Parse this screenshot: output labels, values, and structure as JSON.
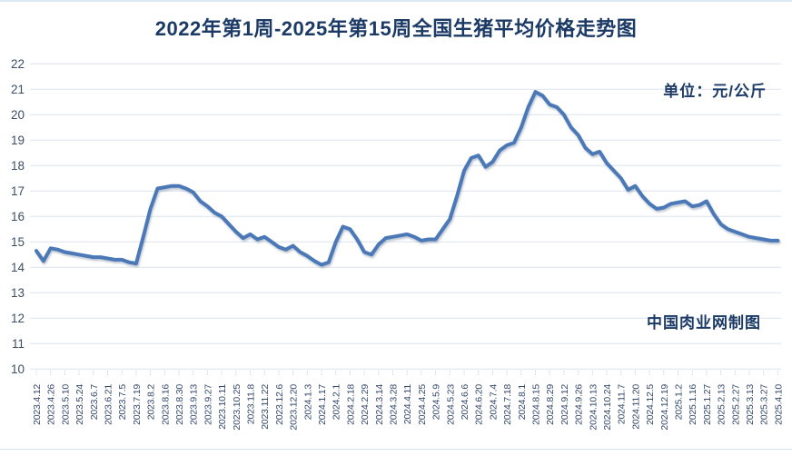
{
  "page": {
    "title": "2022年第1周-2025年第15周全国生猪平均价格走势图",
    "unit_label": "单位：元/公斤",
    "watermark": "中国肉业网制图"
  },
  "colors": {
    "title_text": "#1b3a66",
    "annotation_text": "#1b3a66",
    "axis_text": "#3e4e66",
    "grid_line": "#dbe4f0",
    "series_line": "#4b79b7",
    "background": "#ffffff"
  },
  "chart_data": {
    "type": "line",
    "title": "2022年第1周-2025年第15周全国生猪平均价格走势图",
    "xlabel": "",
    "ylabel": "元/公斤",
    "ylim": [
      10,
      22
    ],
    "y_ticks": [
      22,
      21,
      20,
      19,
      18,
      17,
      16,
      15,
      14,
      13,
      12,
      11,
      10
    ],
    "grid": "horizontal",
    "legend": "none",
    "x_tick_labels": [
      "2023.4.12",
      "2023.4.26",
      "2023.5.10",
      "2023.5.24",
      "2023.6.7",
      "2023.6.21",
      "2023.7.5",
      "2023.7.19",
      "2023.8.2",
      "2023.8.16",
      "2023.8.30",
      "2023.9.13",
      "2023.9.27",
      "2023.10.11",
      "2023.10.25",
      "2023.11.8",
      "2023.11.22",
      "2023.12.6",
      "2023.12.20",
      "2024.1.3",
      "2024.1.17",
      "2024.2.1",
      "2024.2.18",
      "2024.2.29",
      "2024.3.14",
      "2024.3.28",
      "2024.4.11",
      "2024.4.25",
      "2024.5.9",
      "2024.5.23",
      "2024.6.6",
      "2024.6.20",
      "2024.7.4",
      "2024.7.18",
      "2024.8.1",
      "2024.8.15",
      "2024.8.29",
      "2024.9.12",
      "2024.9.26",
      "2024.10.13",
      "2024.10.24",
      "2024.11.7",
      "2024.11.20",
      "2024.12.5",
      "2024.12.19",
      "2025.1.2",
      "2025.1.16",
      "2025.1.27",
      "2025.2.13",
      "2025.2.27",
      "2025.3.13",
      "2025.3.27",
      "2025.4.10"
    ],
    "x_tick_every_n_points": 2,
    "series": [
      {
        "name": "全国生猪平均价格",
        "color": "#4b79b7",
        "values": [
          14.65,
          14.25,
          14.75,
          14.7,
          14.6,
          14.55,
          14.5,
          14.45,
          14.4,
          14.4,
          14.35,
          14.3,
          14.3,
          14.2,
          14.15,
          15.2,
          16.3,
          17.1,
          17.15,
          17.2,
          17.2,
          17.1,
          16.95,
          16.6,
          16.4,
          16.15,
          16.0,
          15.7,
          15.4,
          15.15,
          15.3,
          15.1,
          15.2,
          15.0,
          14.8,
          14.7,
          14.85,
          14.6,
          14.45,
          14.25,
          14.1,
          14.2,
          15.0,
          15.6,
          15.5,
          15.1,
          14.6,
          14.5,
          14.9,
          15.15,
          15.2,
          15.25,
          15.3,
          15.2,
          15.05,
          15.1,
          15.1,
          15.5,
          15.9,
          16.8,
          17.8,
          18.3,
          18.4,
          17.95,
          18.15,
          18.6,
          18.8,
          18.9,
          19.5,
          20.3,
          20.9,
          20.75,
          20.4,
          20.3,
          20.0,
          19.5,
          19.2,
          18.7,
          18.45,
          18.55,
          18.1,
          17.8,
          17.5,
          17.05,
          17.2,
          16.8,
          16.5,
          16.3,
          16.35,
          16.5,
          16.55,
          16.6,
          16.4,
          16.45,
          16.6,
          16.1,
          15.7,
          15.5,
          15.4,
          15.3,
          15.2,
          15.15,
          15.1,
          15.05,
          15.05
        ]
      }
    ]
  }
}
